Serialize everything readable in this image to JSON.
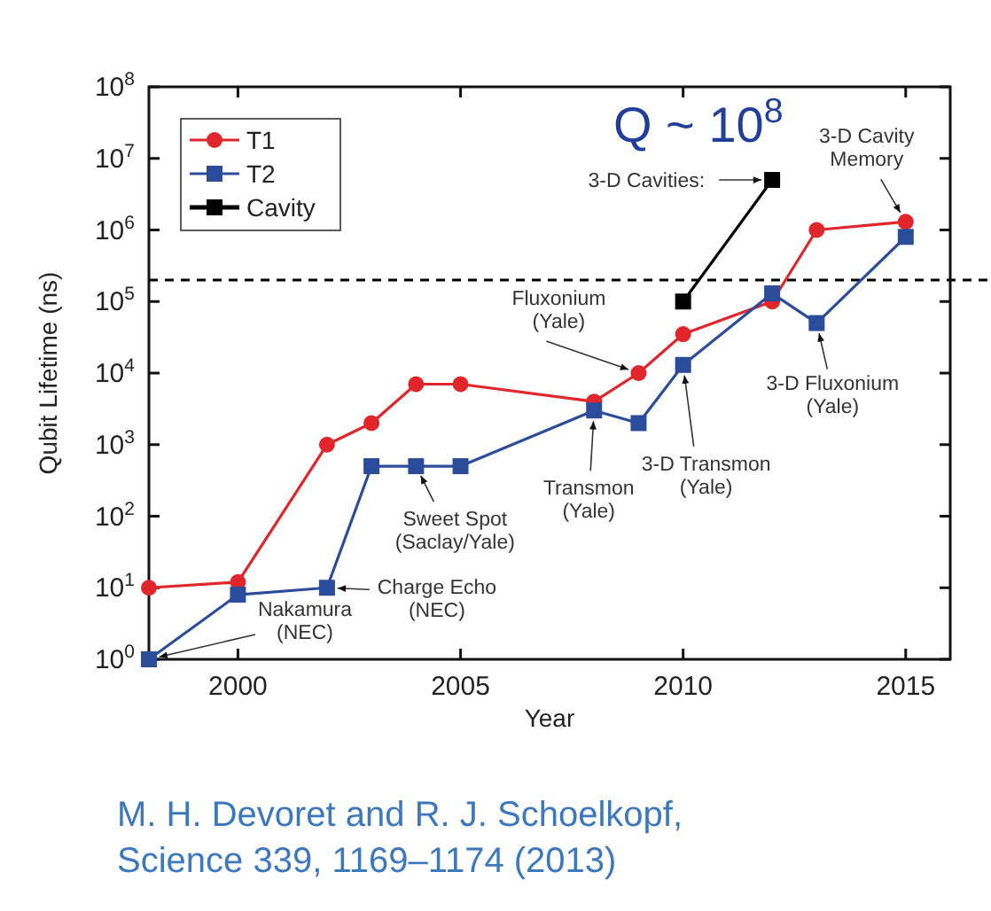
{
  "chart_data": {
    "type": "line",
    "xlabel": "Year",
    "ylabel": "Qubit Lifetime (ns)",
    "log": "y",
    "xlim": [
      1998,
      2016
    ],
    "xticks": [
      2000,
      2005,
      2010,
      2015
    ],
    "ylim": [
      1,
      100000000
    ],
    "yticks": [
      {
        "value": 1,
        "label": "10$^{0}$"
      },
      {
        "value": 10,
        "label": "10$^{1}$"
      },
      {
        "value": 100,
        "label": "10$^{2}$"
      },
      {
        "value": 1000,
        "label": "10$^{3}$"
      },
      {
        "value": 10000,
        "label": "10$^{4}$"
      },
      {
        "value": 100000,
        "label": "10$^{5}$"
      },
      {
        "value": 1000000,
        "label": "10$^{6}$"
      },
      {
        "value": 10000000,
        "label": "10$^{7}$"
      },
      {
        "value": 100000000,
        "label": "10$^{8}$"
      }
    ],
    "grid": false,
    "legend": "top left",
    "series": [
      {
        "name": "T1",
        "color": "#e0252b",
        "marker": "circle",
        "x": [
          1998,
          2000,
          2002,
          2003,
          2004,
          2005,
          2008,
          2009,
          2010,
          2012,
          2013,
          2015
        ],
        "values": [
          10,
          12,
          1000,
          2000,
          7000,
          7000,
          4000,
          10000,
          35000,
          100000,
          1000000,
          1300000
        ]
      },
      {
        "name": "T2",
        "color": "#2b4c9b",
        "marker": "square",
        "x": [
          1998,
          2000,
          2002,
          2003,
          2004,
          2005,
          2008,
          2009,
          2010,
          2012,
          2013,
          2015
        ],
        "values": [
          1,
          8,
          10,
          500,
          500,
          500,
          3000,
          2000,
          13000,
          130000,
          50000,
          800000
        ]
      },
      {
        "name": "Cavity",
        "color": "#000000",
        "marker": "square",
        "x": [
          2010,
          2012
        ],
        "values": [
          100000,
          5000000
        ]
      }
    ],
    "ref_lines": [
      {
        "axis": "y",
        "value": 200000,
        "line_style": "dashed",
        "color": "#000000"
      }
    ],
    "annotations": [
      {
        "text": "Nakamura\n(NEC)",
        "x": 1998,
        "y": 1
      },
      {
        "text": "Charge Echo\n(NEC)",
        "x": 2002,
        "y": 10
      },
      {
        "text": "Sweet Spot\n(Saclay/Yale)",
        "x": 2004,
        "y": 500
      },
      {
        "text": "Transmon\n(Yale)",
        "x": 2008,
        "y": 3000
      },
      {
        "text": "Fluxonium\n(Yale)",
        "x": 2009,
        "y": 10000
      },
      {
        "text": "3-D Transmon\n(Yale)",
        "x": 2010,
        "y": 13000
      },
      {
        "text": "3-D Fluxonium\n(Yale)",
        "x": 2013,
        "y": 50000
      },
      {
        "text": "3-D Cavity\nMemory",
        "x": 2015,
        "y": 1300000
      },
      {
        "text": "3-D Cavities:",
        "x": 2012,
        "y": 5000000
      },
      "Q ~ 10$^{8}$",
      "M. H. Devoret and R. J. Schoelkopf,\nScience 339, 1169–1174 (2013)"
    ]
  }
}
